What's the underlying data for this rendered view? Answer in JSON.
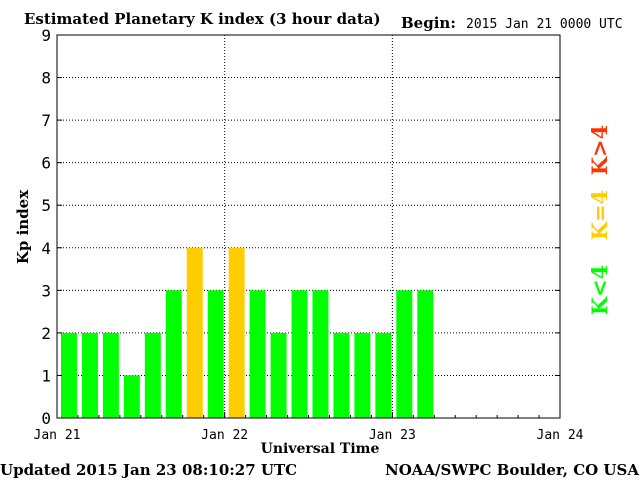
{
  "header": {
    "title": "Estimated Planetary K index (3 hour data)",
    "begin_label": "Begin:",
    "begin_value": "2015 Jan 21 0000 UTC"
  },
  "footer": {
    "updated": "Updated 2015 Jan 23 08:10:27 UTC",
    "credit": "NOAA/SWPC Boulder, CO USA"
  },
  "legend": {
    "high": "K>4",
    "equal": "K=4",
    "low": "K<4"
  },
  "colors": {
    "low": "#00ff00",
    "equal": "#ffcc00",
    "high": "#ff3300",
    "axis": "#000000",
    "grid": "#000000",
    "background": "#ffffff"
  },
  "chart_data": {
    "type": "bar",
    "title": "Estimated Planetary K index (3 hour data)",
    "xlabel": "Universal Time",
    "ylabel": "Kp index",
    "ylim": [
      0,
      9
    ],
    "yticks": [
      "0",
      "1",
      "2",
      "3",
      "4",
      "5",
      "6",
      "7",
      "8",
      "9"
    ],
    "xticks": [
      "Jan 21",
      "Jan 22",
      "Jan 23",
      "Jan 24"
    ],
    "grid": true,
    "bins_total": 24,
    "values": [
      2,
      2,
      2,
      1,
      2,
      3,
      4,
      3,
      4,
      3,
      2,
      3,
      3,
      2,
      2,
      2,
      3,
      3
    ]
  }
}
